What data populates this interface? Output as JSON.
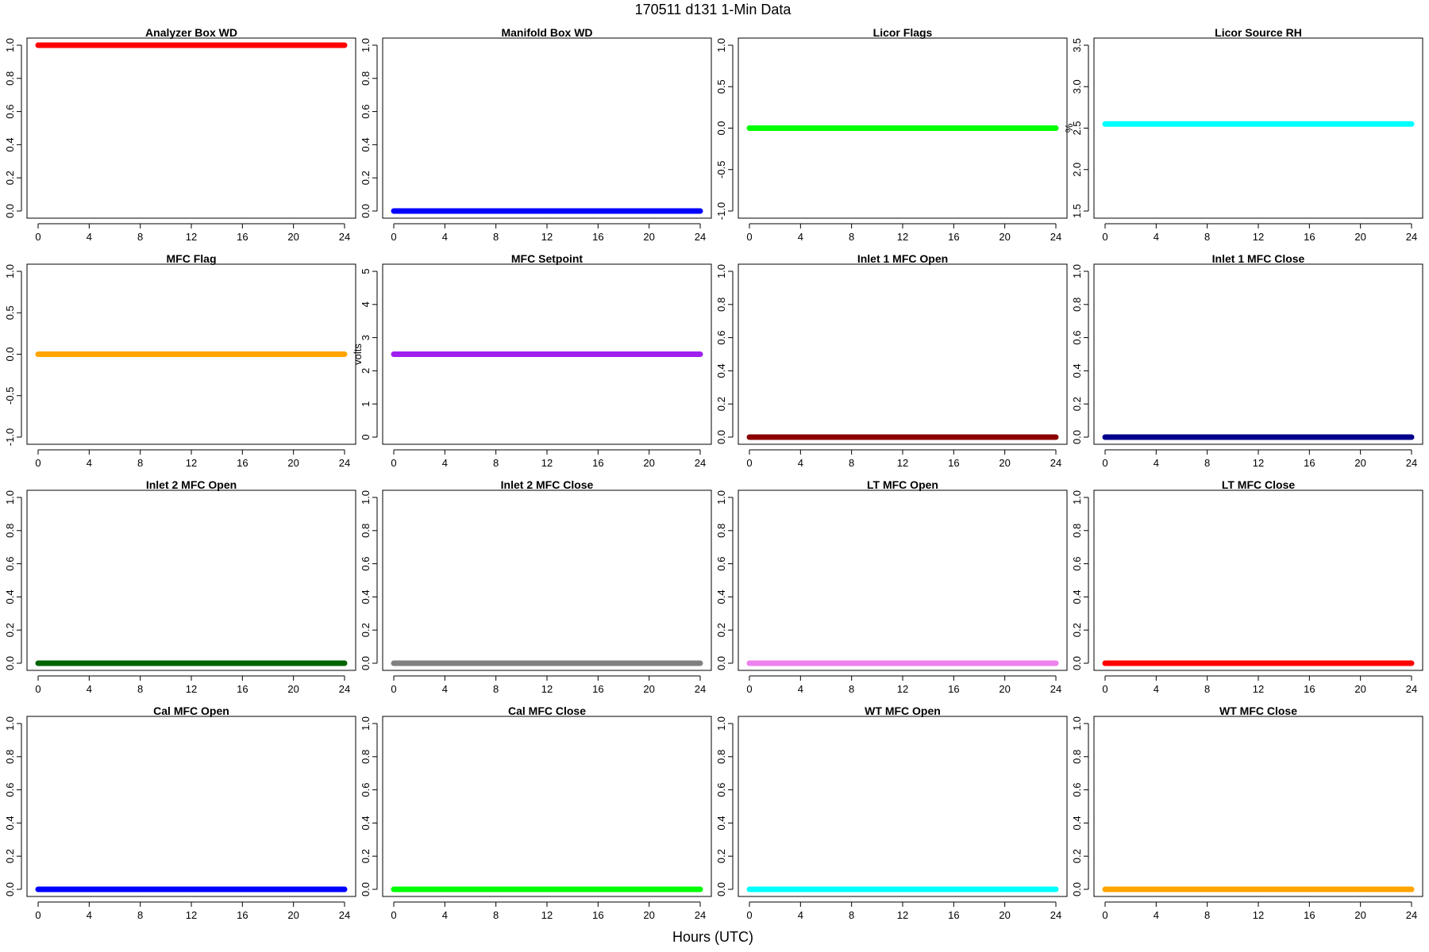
{
  "figure": {
    "title": "170511   d131   1-Min Data",
    "xlabel": "Hours (UTC)"
  },
  "chart_data": [
    {
      "type": "scatter",
      "title": "Analyzer Box WD",
      "ylabel": "",
      "color": "#ff0000",
      "xlim": [
        0,
        24
      ],
      "xticks": [
        0,
        4,
        8,
        12,
        16,
        20,
        24
      ],
      "ylim": [
        0,
        1
      ],
      "yticks": [
        "0.0",
        "0.2",
        "0.4",
        "0.6",
        "0.8",
        "1.0"
      ],
      "x": [
        0,
        24
      ],
      "y": [
        1,
        1
      ]
    },
    {
      "type": "scatter",
      "title": "Manifold Box WD",
      "ylabel": "",
      "color": "#0000ff",
      "xlim": [
        0,
        24
      ],
      "xticks": [
        0,
        4,
        8,
        12,
        16,
        20,
        24
      ],
      "ylim": [
        0,
        1
      ],
      "yticks": [
        "0.0",
        "0.2",
        "0.4",
        "0.6",
        "0.8",
        "1.0"
      ],
      "x": [
        0,
        24
      ],
      "y": [
        0,
        0
      ]
    },
    {
      "type": "scatter",
      "title": "Licor Flags",
      "ylabel": "",
      "color": "#00ff00",
      "xlim": [
        0,
        24
      ],
      "xticks": [
        0,
        4,
        8,
        12,
        16,
        20,
        24
      ],
      "ylim": [
        -1,
        1
      ],
      "yticks": [
        "-1.0",
        "-0.5",
        "0.0",
        "0.5",
        "1.0"
      ],
      "x": [
        0,
        24
      ],
      "y": [
        0,
        0
      ]
    },
    {
      "type": "scatter",
      "title": "Licor Source RH",
      "ylabel": "%",
      "color": "#00ffff",
      "xlim": [
        0,
        24
      ],
      "xticks": [
        0,
        4,
        8,
        12,
        16,
        20,
        24
      ],
      "ylim": [
        1.5,
        3.5
      ],
      "yticks": [
        "1.5",
        "2.0",
        "2.5",
        "3.0",
        "3.5"
      ],
      "x": [
        0,
        24
      ],
      "y": [
        2.55,
        2.55
      ]
    },
    {
      "type": "scatter",
      "title": "MFC Flag",
      "ylabel": "",
      "color": "#ffa500",
      "xlim": [
        0,
        24
      ],
      "xticks": [
        0,
        4,
        8,
        12,
        16,
        20,
        24
      ],
      "ylim": [
        -1,
        1
      ],
      "yticks": [
        "-1.0",
        "-0.5",
        "0.0",
        "0.5",
        "1.0"
      ],
      "x": [
        0,
        24
      ],
      "y": [
        0,
        0
      ]
    },
    {
      "type": "scatter",
      "title": "MFC Setpoint",
      "ylabel": "volts",
      "color": "#a020f0",
      "xlim": [
        0,
        24
      ],
      "xticks": [
        0,
        4,
        8,
        12,
        16,
        20,
        24
      ],
      "ylim": [
        0,
        5
      ],
      "yticks": [
        "0",
        "1",
        "2",
        "3",
        "4",
        "5"
      ],
      "x": [
        0,
        24
      ],
      "y": [
        2.5,
        2.5
      ]
    },
    {
      "type": "scatter",
      "title": "Inlet 1 MFC Open",
      "ylabel": "",
      "color": "#8b0000",
      "xlim": [
        0,
        24
      ],
      "xticks": [
        0,
        4,
        8,
        12,
        16,
        20,
        24
      ],
      "ylim": [
        0,
        1
      ],
      "yticks": [
        "0.0",
        "0.2",
        "0.4",
        "0.6",
        "0.8",
        "1.0"
      ],
      "x": [
        0,
        24
      ],
      "y": [
        0,
        0
      ]
    },
    {
      "type": "scatter",
      "title": "Inlet 1 MFC Close",
      "ylabel": "",
      "color": "#00008b",
      "xlim": [
        0,
        24
      ],
      "xticks": [
        0,
        4,
        8,
        12,
        16,
        20,
        24
      ],
      "ylim": [
        0,
        1
      ],
      "yticks": [
        "0.0",
        "0.2",
        "0.4",
        "0.6",
        "0.8",
        "1.0"
      ],
      "x": [
        0,
        24
      ],
      "y": [
        0,
        0
      ]
    },
    {
      "type": "scatter",
      "title": "Inlet 2 MFC Open",
      "ylabel": "",
      "color": "#006400",
      "xlim": [
        0,
        24
      ],
      "xticks": [
        0,
        4,
        8,
        12,
        16,
        20,
        24
      ],
      "ylim": [
        0,
        1
      ],
      "yticks": [
        "0.0",
        "0.2",
        "0.4",
        "0.6",
        "0.8",
        "1.0"
      ],
      "x": [
        0,
        24
      ],
      "y": [
        0,
        0
      ]
    },
    {
      "type": "scatter",
      "title": "Inlet 2 MFC Close",
      "ylabel": "",
      "color": "#808080",
      "xlim": [
        0,
        24
      ],
      "xticks": [
        0,
        4,
        8,
        12,
        16,
        20,
        24
      ],
      "ylim": [
        0,
        1
      ],
      "yticks": [
        "0.0",
        "0.2",
        "0.4",
        "0.6",
        "0.8",
        "1.0"
      ],
      "x": [
        0,
        24
      ],
      "y": [
        0,
        0
      ]
    },
    {
      "type": "scatter",
      "title": "LT MFC Open",
      "ylabel": "",
      "color": "#ee82ee",
      "xlim": [
        0,
        24
      ],
      "xticks": [
        0,
        4,
        8,
        12,
        16,
        20,
        24
      ],
      "ylim": [
        0,
        1
      ],
      "yticks": [
        "0.0",
        "0.2",
        "0.4",
        "0.6",
        "0.8",
        "1.0"
      ],
      "x": [
        0,
        24
      ],
      "y": [
        0,
        0
      ]
    },
    {
      "type": "scatter",
      "title": "LT MFC Close",
      "ylabel": "",
      "color": "#ff0000",
      "xlim": [
        0,
        24
      ],
      "xticks": [
        0,
        4,
        8,
        12,
        16,
        20,
        24
      ],
      "ylim": [
        0,
        1
      ],
      "yticks": [
        "0.0",
        "0.2",
        "0.4",
        "0.6",
        "0.8",
        "1.0"
      ],
      "x": [
        0,
        24
      ],
      "y": [
        0,
        0
      ]
    },
    {
      "type": "scatter",
      "title": "Cal MFC Open",
      "ylabel": "",
      "color": "#0000ff",
      "xlim": [
        0,
        24
      ],
      "xticks": [
        0,
        4,
        8,
        12,
        16,
        20,
        24
      ],
      "ylim": [
        0,
        1
      ],
      "yticks": [
        "0.0",
        "0.2",
        "0.4",
        "0.6",
        "0.8",
        "1.0"
      ],
      "x": [
        0,
        24
      ],
      "y": [
        0,
        0
      ]
    },
    {
      "type": "scatter",
      "title": "Cal MFC Close",
      "ylabel": "",
      "color": "#00ff00",
      "xlim": [
        0,
        24
      ],
      "xticks": [
        0,
        4,
        8,
        12,
        16,
        20,
        24
      ],
      "ylim": [
        0,
        1
      ],
      "yticks": [
        "0.0",
        "0.2",
        "0.4",
        "0.6",
        "0.8",
        "1.0"
      ],
      "x": [
        0,
        24
      ],
      "y": [
        0,
        0
      ]
    },
    {
      "type": "scatter",
      "title": "WT MFC Open",
      "ylabel": "",
      "color": "#00ffff",
      "xlim": [
        0,
        24
      ],
      "xticks": [
        0,
        4,
        8,
        12,
        16,
        20,
        24
      ],
      "ylim": [
        0,
        1
      ],
      "yticks": [
        "0.0",
        "0.2",
        "0.4",
        "0.6",
        "0.8",
        "1.0"
      ],
      "x": [
        0,
        24
      ],
      "y": [
        0,
        0
      ]
    },
    {
      "type": "scatter",
      "title": "WT MFC Close",
      "ylabel": "",
      "color": "#ffa500",
      "xlim": [
        0,
        24
      ],
      "xticks": [
        0,
        4,
        8,
        12,
        16,
        20,
        24
      ],
      "ylim": [
        0,
        1
      ],
      "yticks": [
        "0.0",
        "0.2",
        "0.4",
        "0.6",
        "0.8",
        "1.0"
      ],
      "x": [
        0,
        24
      ],
      "y": [
        0,
        0
      ]
    }
  ]
}
